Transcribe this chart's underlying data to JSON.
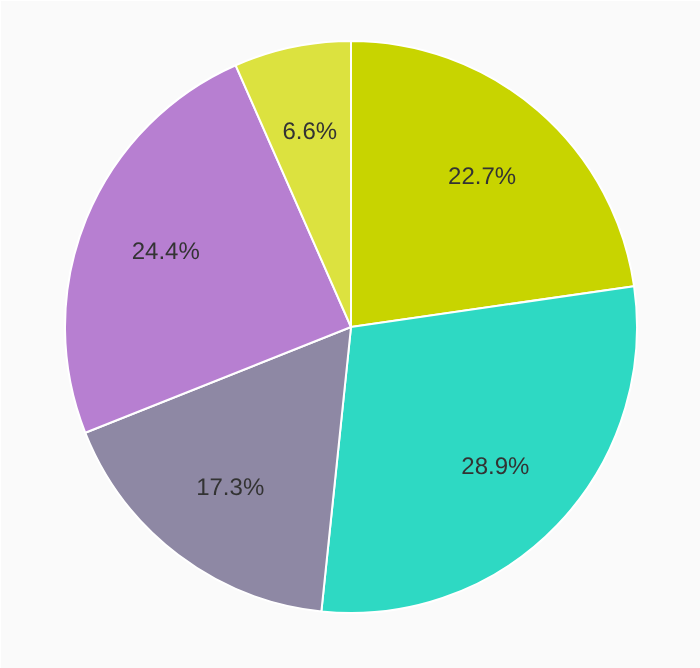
{
  "chart_data": {
    "type": "pie",
    "categories": [
      null,
      null,
      null,
      null,
      null
    ],
    "values": [
      22.7,
      28.9,
      17.3,
      24.4,
      6.6
    ],
    "colors": [
      "#c8d400",
      "#2ed9c3",
      "#8e88a4",
      "#b77fd1",
      "#dce23f"
    ],
    "value_labels": [
      "22.7%",
      "28.9%",
      "17.3%",
      "24.4%",
      "6.6%"
    ],
    "legend": false
  }
}
